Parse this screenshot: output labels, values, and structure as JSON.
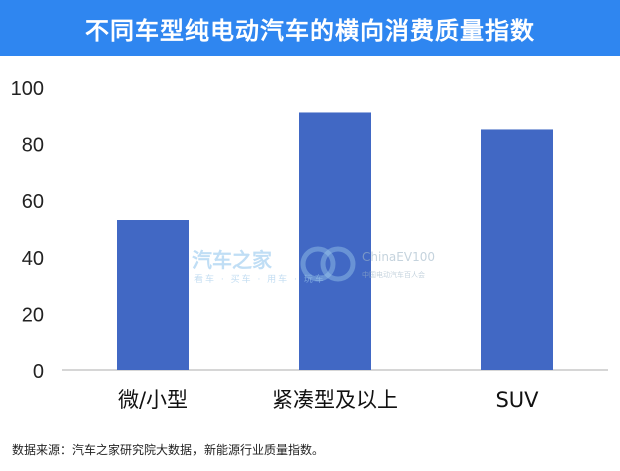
{
  "title": "不同车型纯电动汽车的横向消费质量指数",
  "source": "数据来源：汽车之家研究院大数据，新能源行业质量指数。",
  "watermark": {
    "brand": "汽车之家",
    "brand_sub": "看车 · 买车 · 用车 · 玩车",
    "partner": "ChinaEV100",
    "partner_sub": "中国电动汽车百人会"
  },
  "colors": {
    "header": "#2f86f0",
    "bar": "#4168c4"
  },
  "chart_data": {
    "type": "bar",
    "categories": [
      "微/小型",
      "紧凑型及以上",
      "SUV"
    ],
    "values": [
      53,
      91,
      85
    ],
    "title": "",
    "xlabel": "",
    "ylabel": "",
    "ylim": [
      0,
      100
    ],
    "yticks": [
      0,
      20,
      40,
      60,
      80,
      100
    ],
    "grid": false,
    "legend": "none"
  }
}
